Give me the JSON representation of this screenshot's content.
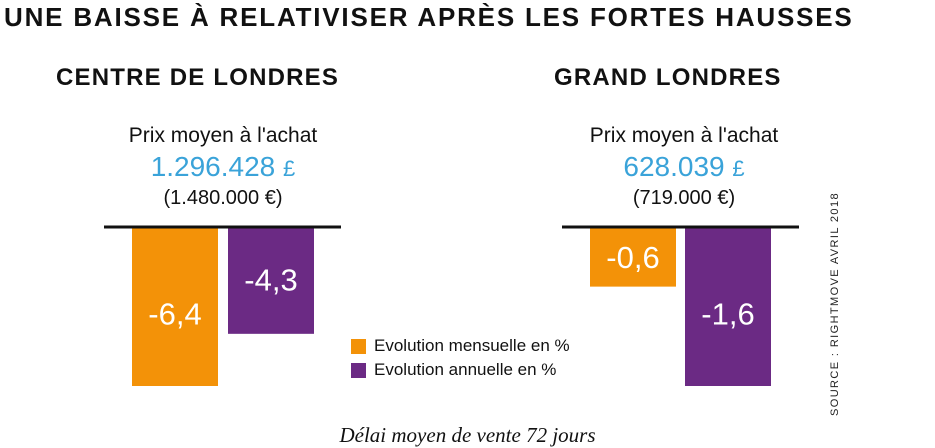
{
  "title": "UNE BAISSE À RELATIVISER APRÈS LES FORTES HAUSSES",
  "colors": {
    "monthly": "#f39208",
    "annual": "#6b2a84",
    "price": "#3aa3d9"
  },
  "panels": [
    {
      "title": "CENTRE DE LONDRES",
      "price_label": "Prix moyen à l'achat",
      "price_gbp": "1.296.428",
      "currency_gbp": "£",
      "price_eur": "(1.480.000 €)"
    },
    {
      "title": "GRAND LONDRES",
      "price_label": "Prix moyen à l'achat",
      "price_gbp": "628.039",
      "currency_gbp": "£",
      "price_eur": "(719.000 €)"
    }
  ],
  "chart_data": [
    {
      "type": "bar",
      "title": "CENTRE DE LONDRES",
      "categories": [
        "Evolution mensuelle en %",
        "Evolution annuelle en %"
      ],
      "values": [
        -6.4,
        -4.3
      ],
      "labels": [
        "-6,4",
        "-4,3"
      ],
      "ylim": [
        -6.4,
        0
      ],
      "grid": false
    },
    {
      "type": "bar",
      "title": "GRAND LONDRES",
      "categories": [
        "Evolution mensuelle en %",
        "Evolution annuelle en %"
      ],
      "values": [
        -0.6,
        -1.6
      ],
      "labels": [
        "-0,6",
        "-1,6"
      ],
      "ylim": [
        -1.6,
        0
      ],
      "grid": false
    }
  ],
  "legend": {
    "placement": "bottom-center",
    "items": [
      {
        "label": "Evolution mensuelle en %",
        "color": "#f39208"
      },
      {
        "label": "Evolution annuelle en %",
        "color": "#6b2a84"
      }
    ]
  },
  "source": "SOURCE : RIGHTMOVE AVRIL 2018",
  "footer": "Délai moyen de vente 72 jours"
}
